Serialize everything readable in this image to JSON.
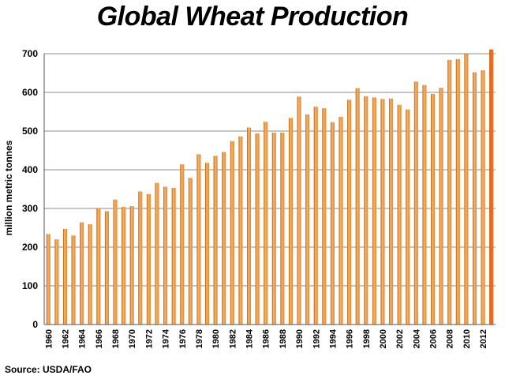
{
  "colors": {
    "bar": "#E8872A",
    "bar_dark": "#B35A10",
    "bar_light": "#F6B46A",
    "bar_highlight": "#F26A1B",
    "gridline": "#8C8C8C",
    "axis": "#555555"
  },
  "chart_data": {
    "type": "bar",
    "title": "Global Wheat Production",
    "xlabel": "",
    "ylabel": "million metric tonnes",
    "ylim": [
      0,
      700
    ],
    "yticks": [
      0,
      100,
      200,
      300,
      400,
      500,
      600,
      700
    ],
    "grid": true,
    "legend": "none",
    "highlight_last": true,
    "categories": [
      "1960",
      "1961",
      "1962",
      "1963",
      "1964",
      "1965",
      "1966",
      "1967",
      "1968",
      "1969",
      "1970",
      "1971",
      "1972",
      "1973",
      "1974",
      "1975",
      "1976",
      "1977",
      "1978",
      "1979",
      "1980",
      "1981",
      "1982",
      "1983",
      "1984",
      "1985",
      "1986",
      "1987",
      "1988",
      "1989",
      "1990",
      "1991",
      "1992",
      "1993",
      "1994",
      "1995",
      "1996",
      "1997",
      "1998",
      "1999",
      "2000",
      "2001",
      "2002",
      "2003",
      "2004",
      "2005",
      "2006",
      "2007",
      "2008",
      "2009",
      "2010",
      "2011",
      "2012",
      "2013"
    ],
    "tick_labels": [
      "1960",
      "1962",
      "1964",
      "1966",
      "1968",
      "1970",
      "1972",
      "1974",
      "1976",
      "1978",
      "1980",
      "1982",
      "1984",
      "1986",
      "1988",
      "1990",
      "1992",
      "1994",
      "1996",
      "1998",
      "2000",
      "2002",
      "2004",
      "2006",
      "2008",
      "2010",
      "2012"
    ],
    "values": [
      234,
      220,
      247,
      230,
      264,
      259,
      300,
      293,
      323,
      304,
      306,
      344,
      337,
      366,
      356,
      353,
      414,
      379,
      440,
      418,
      436,
      446,
      474,
      486,
      509,
      494,
      524,
      496,
      496,
      534,
      589,
      543,
      563,
      559,
      523,
      537,
      581,
      611,
      590,
      587,
      583,
      584,
      568,
      556,
      628,
      619,
      596,
      612,
      684,
      686,
      699,
      652,
      657,
      711
    ]
  },
  "source": "Source: USDA/FAO"
}
